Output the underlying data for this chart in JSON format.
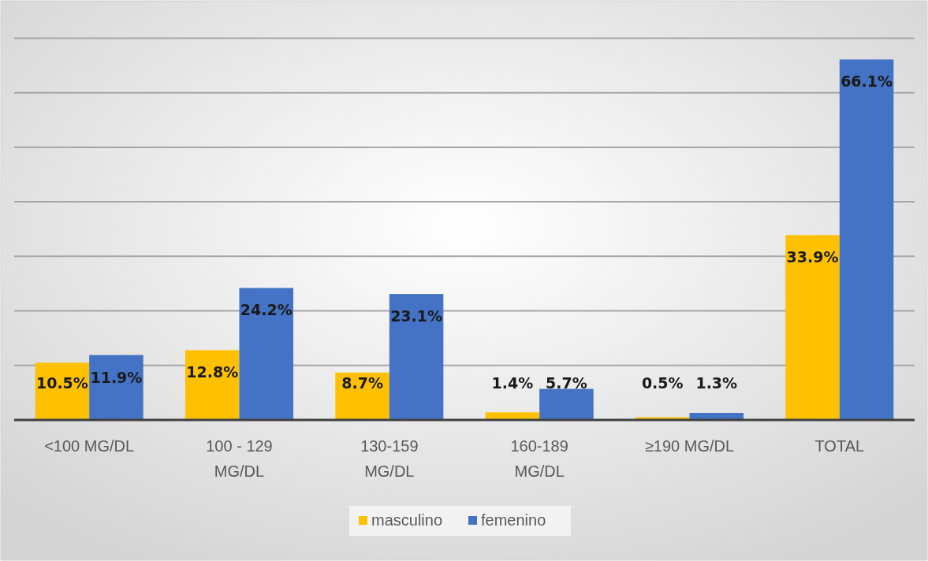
{
  "chart_data": {
    "type": "bar",
    "categories": [
      "<100 MG/DL",
      "100 - 129 MG/DL",
      "130-159 MG/DL",
      "160-189 MG/DL",
      "≥190 MG/DL",
      "TOTAL"
    ],
    "series": [
      {
        "name": "masculino",
        "color": "#ffc000",
        "values": [
          10.5,
          12.8,
          8.7,
          1.4,
          0.5,
          33.9
        ],
        "value_labels": [
          "10.5%",
          "12.8%",
          "8.7%",
          "1.4%",
          "0.5%",
          "33.9%"
        ]
      },
      {
        "name": "femenino",
        "color": "#4472c4",
        "values": [
          11.9,
          24.2,
          23.1,
          5.7,
          1.3,
          66.1
        ],
        "value_labels": [
          "11.9%",
          "24.2%",
          "23.1%",
          "5.7%",
          "1.3%",
          "66.1%"
        ]
      }
    ],
    "tick_labels": "x",
    "grid": "y",
    "legend": "bottom"
  }
}
